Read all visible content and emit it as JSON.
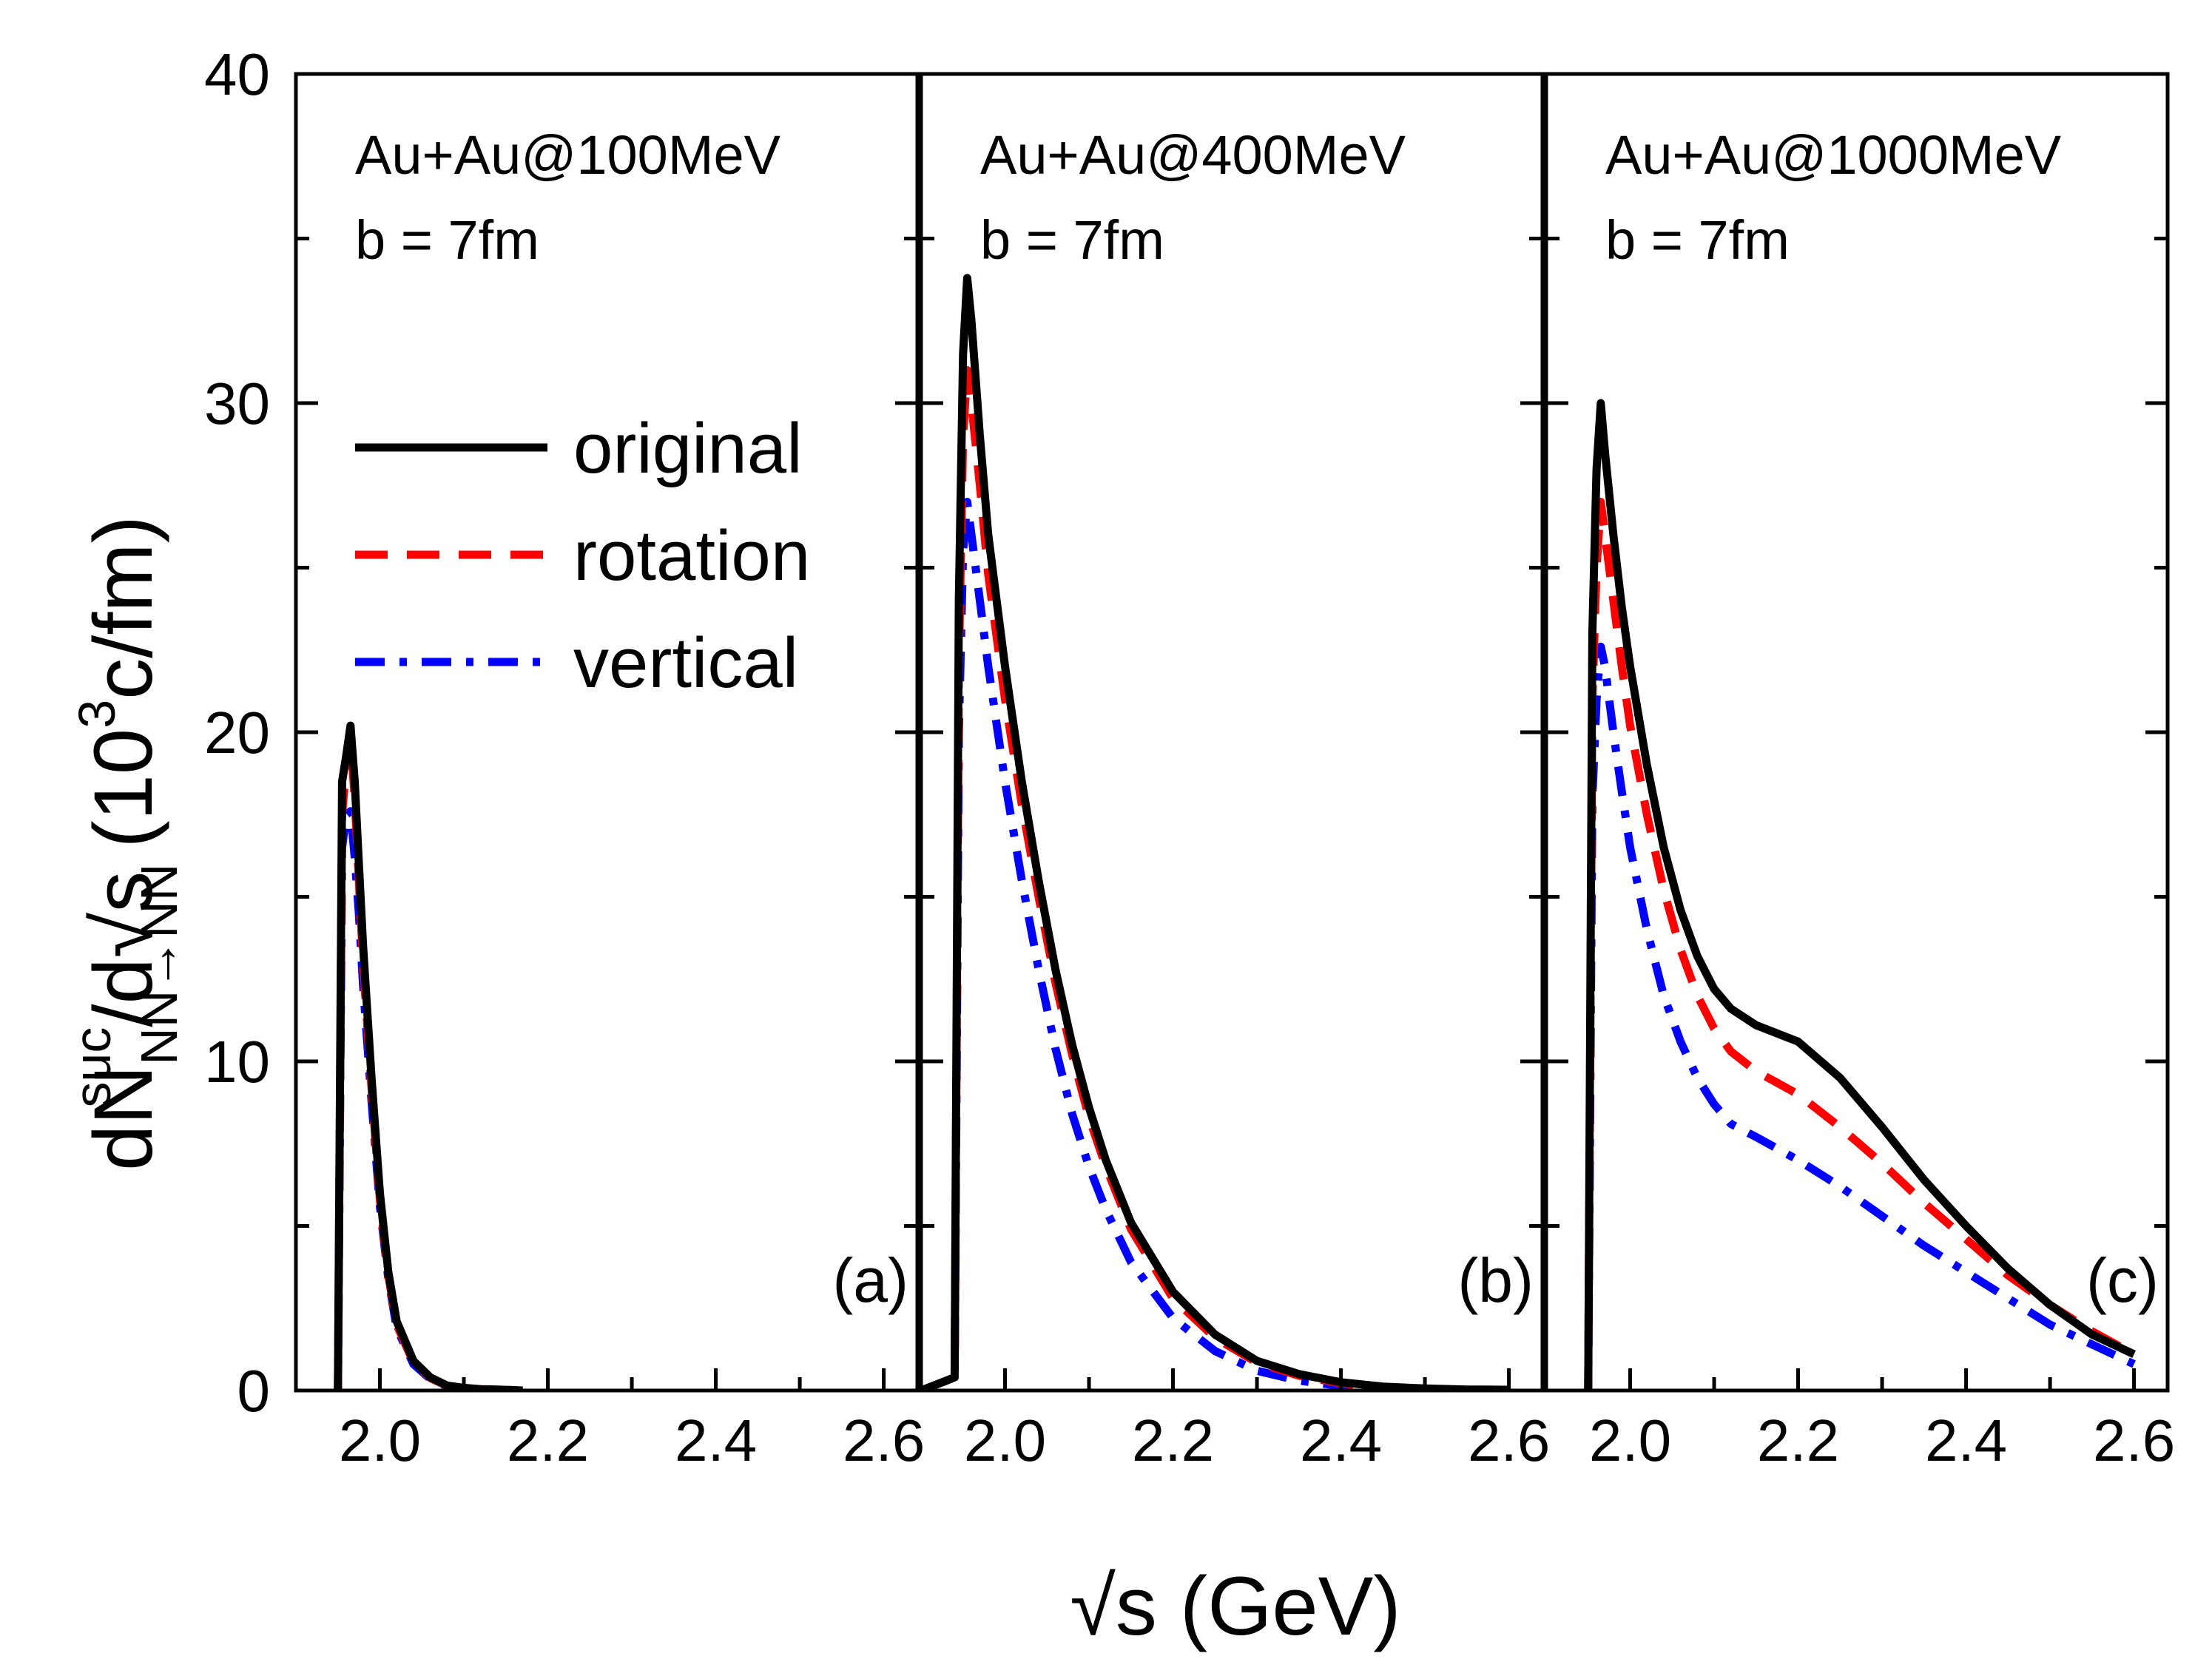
{
  "chart_data": {
    "type": "line",
    "xlabel": "√s (GeV)",
    "ylabel": {
      "main": "dN",
      "superscript": "suc",
      "subscript": "NN→NN",
      "rest": "/d√s (10",
      "exp": "3",
      "unit": "c/fm)"
    },
    "ylim": [
      0,
      40
    ],
    "yticks": [
      0,
      10,
      20,
      30,
      40
    ],
    "xlim": [
      1.9,
      2.64
    ],
    "xticks": [
      2.0,
      2.2,
      2.4,
      2.6
    ],
    "xtick_labels": [
      [
        "2.0",
        "2.2",
        "2.4",
        "2.6"
      ],
      [
        "2.0",
        "2.2",
        "2.4",
        "2.6"
      ],
      [
        "2.0",
        "2.2",
        "2.4",
        "2.6"
      ]
    ],
    "legend": {
      "position": "upper-left of panel (a)",
      "entries": [
        {
          "key": "original",
          "label": "original",
          "color": "#000000",
          "style": "solid"
        },
        {
          "key": "rotation",
          "label": "rotation",
          "color": "#ff0000",
          "style": "dash"
        },
        {
          "key": "vertical",
          "label": "vertical",
          "color": "#0000ff",
          "style": "dashdot"
        }
      ]
    },
    "panels": [
      {
        "label": "(a)",
        "title_line1": "Au+Au@100MeV",
        "title_line2": "b = 7fm",
        "series": [
          {
            "key": "original",
            "x": [
              1.95,
              1.955,
              1.96,
              1.965,
              1.97,
              1.975,
              1.98,
              1.99,
              2.0,
              2.01,
              2.02,
              2.04,
              2.06,
              2.08,
              2.1,
              2.12,
              2.15,
              2.17
            ],
            "y": [
              0.0,
              18.5,
              19.3,
              20.2,
              18.5,
              16.0,
              13.5,
              9.5,
              6.0,
              3.6,
              2.1,
              0.9,
              0.4,
              0.15,
              0.08,
              0.04,
              0.02,
              0.0
            ]
          },
          {
            "key": "rotation",
            "x": [
              1.95,
              1.955,
              1.96,
              1.965,
              1.97,
              1.975,
              1.98,
              1.99,
              2.0,
              2.01,
              2.02,
              2.04,
              2.06,
              2.08,
              2.1,
              2.12,
              2.15,
              2.17
            ],
            "y": [
              0.0,
              17.5,
              19.0,
              19.8,
              18.0,
              15.5,
              13.0,
              9.2,
              5.8,
              3.5,
              2.0,
              0.85,
              0.38,
              0.14,
              0.07,
              0.04,
              0.02,
              0.0
            ]
          },
          {
            "key": "vertical",
            "x": [
              1.95,
              1.955,
              1.96,
              1.965,
              1.97,
              1.975,
              1.98,
              1.99,
              2.0,
              2.01,
              2.02,
              2.04,
              2.06,
              2.08,
              2.1,
              2.12,
              2.15,
              2.17
            ],
            "y": [
              0.0,
              16.5,
              17.5,
              17.6,
              16.2,
              14.5,
              12.3,
              8.8,
              5.6,
              3.4,
              1.9,
              0.8,
              0.35,
              0.13,
              0.06,
              0.03,
              0.02,
              0.0
            ]
          }
        ]
      },
      {
        "label": "(b)",
        "title_line1": "Au+Au@400MeV",
        "title_line2": "b = 7fm",
        "series": [
          {
            "key": "original",
            "x": [
              1.9,
              1.93,
              1.94,
              1.945,
              1.95,
              1.955,
              1.96,
              1.97,
              1.98,
              2.0,
              2.02,
              2.04,
              2.06,
              2.08,
              2.1,
              2.12,
              2.15,
              2.2,
              2.25,
              2.3,
              2.35,
              2.4,
              2.45,
              2.5,
              2.55,
              2.6
            ],
            "y": [
              0.0,
              0.3,
              0.4,
              24.0,
              31.5,
              33.8,
              32.5,
              29.0,
              26.0,
              22.0,
              18.5,
              15.5,
              12.8,
              10.5,
              8.6,
              7.0,
              5.1,
              3.0,
              1.7,
              0.9,
              0.5,
              0.25,
              0.12,
              0.06,
              0.03,
              0.02
            ]
          },
          {
            "key": "rotation",
            "x": [
              1.9,
              1.93,
              1.94,
              1.945,
              1.95,
              1.955,
              1.96,
              1.97,
              1.98,
              2.0,
              2.02,
              2.04,
              2.06,
              2.08,
              2.1,
              2.12,
              2.15,
              2.2,
              2.25,
              2.3,
              2.35,
              2.4,
              2.45,
              2.5,
              2.55,
              2.6
            ],
            "y": [
              0.0,
              0.3,
              0.4,
              22.0,
              29.0,
              31.0,
              30.0,
              27.5,
              24.8,
              21.0,
              17.8,
              15.0,
              12.4,
              10.2,
              8.3,
              6.8,
              4.9,
              2.8,
              1.6,
              0.85,
              0.45,
              0.22,
              0.1,
              0.05,
              0.03,
              0.02
            ]
          },
          {
            "key": "vertical",
            "x": [
              1.9,
              1.93,
              1.94,
              1.945,
              1.95,
              1.955,
              1.96,
              1.97,
              1.98,
              2.0,
              2.02,
              2.04,
              2.06,
              2.08,
              2.1,
              2.12,
              2.15,
              2.2,
              2.25,
              2.3,
              2.35,
              2.4,
              2.45,
              2.5,
              2.55,
              2.6
            ],
            "y": [
              0.0,
              0.3,
              0.4,
              20.0,
              25.5,
              27.0,
              26.0,
              24.0,
              22.0,
              18.5,
              15.5,
              12.8,
              10.4,
              8.4,
              6.8,
              5.5,
              3.9,
              2.2,
              1.2,
              0.6,
              0.3,
              0.14,
              0.07,
              0.04,
              0.02,
              0.01
            ]
          }
        ]
      },
      {
        "label": "(c)",
        "title_line1": "Au+Au@1000MeV",
        "title_line2": "b = 7fm",
        "series": [
          {
            "key": "original",
            "x": [
              1.95,
              1.955,
              1.96,
              1.965,
              1.97,
              1.98,
              1.99,
              2.0,
              2.02,
              2.04,
              2.06,
              2.08,
              2.1,
              2.12,
              2.15,
              2.2,
              2.25,
              2.3,
              2.35,
              2.4,
              2.45,
              2.5,
              2.55,
              2.6
            ],
            "y": [
              0.0,
              23.0,
              28.0,
              30.0,
              28.5,
              26.0,
              23.8,
              22.0,
              19.0,
              16.5,
              14.6,
              13.2,
              12.2,
              11.6,
              11.1,
              10.6,
              9.5,
              8.0,
              6.4,
              5.0,
              3.7,
              2.6,
              1.7,
              1.1
            ]
          },
          {
            "key": "rotation",
            "x": [
              1.95,
              1.955,
              1.96,
              1.965,
              1.97,
              1.98,
              1.99,
              2.0,
              2.02,
              2.04,
              2.06,
              2.08,
              2.1,
              2.12,
              2.15,
              2.2,
              2.25,
              2.3,
              2.35,
              2.4,
              2.45,
              2.5,
              2.55,
              2.6
            ],
            "y": [
              0.0,
              21.0,
              25.0,
              27.0,
              26.0,
              24.0,
              22.0,
              20.2,
              17.5,
              15.2,
              13.4,
              12.0,
              11.0,
              10.3,
              9.7,
              9.0,
              8.0,
              6.9,
              5.7,
              4.6,
              3.5,
              2.6,
              1.8,
              1.1
            ]
          },
          {
            "key": "vertical",
            "x": [
              1.95,
              1.955,
              1.96,
              1.965,
              1.97,
              1.98,
              1.99,
              2.0,
              2.02,
              2.04,
              2.06,
              2.08,
              2.1,
              2.12,
              2.15,
              2.2,
              2.25,
              2.3,
              2.35,
              2.4,
              2.45,
              2.5,
              2.55,
              2.6
            ],
            "y": [
              0.0,
              18.0,
              21.0,
              22.6,
              22.0,
              20.0,
              18.2,
              16.5,
              14.0,
              12.0,
              10.6,
              9.5,
              8.7,
              8.1,
              7.7,
              7.0,
              6.2,
              5.3,
              4.4,
              3.6,
              2.8,
              2.0,
              1.4,
              0.8
            ]
          }
        ]
      }
    ]
  }
}
